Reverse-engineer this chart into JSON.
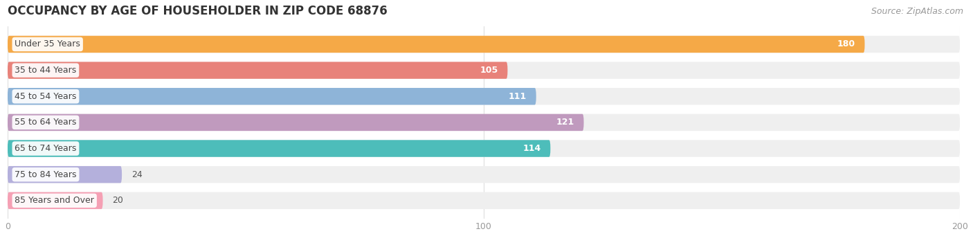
{
  "title": "OCCUPANCY BY AGE OF HOUSEHOLDER IN ZIP CODE 68876",
  "source": "Source: ZipAtlas.com",
  "categories": [
    "Under 35 Years",
    "35 to 44 Years",
    "45 to 54 Years",
    "55 to 64 Years",
    "65 to 74 Years",
    "75 to 84 Years",
    "85 Years and Over"
  ],
  "values": [
    180,
    105,
    111,
    121,
    114,
    24,
    20
  ],
  "bar_colors": [
    "#F5A947",
    "#E8827A",
    "#8EB4D8",
    "#C09ABE",
    "#4DBDBA",
    "#B4B0DC",
    "#F5A0B4"
  ],
  "bar_background": "#EFEFEF",
  "xlim": [
    0,
    200
  ],
  "xticks": [
    0,
    100,
    200
  ],
  "title_fontsize": 12,
  "source_fontsize": 9,
  "label_fontsize": 9,
  "value_fontsize": 9,
  "bar_height": 0.65,
  "background_color": "#FFFFFF",
  "text_color_inside": "#FFFFFF",
  "text_color_outside": "#555555",
  "label_bg": "#FFFFFF",
  "value_threshold": 50
}
